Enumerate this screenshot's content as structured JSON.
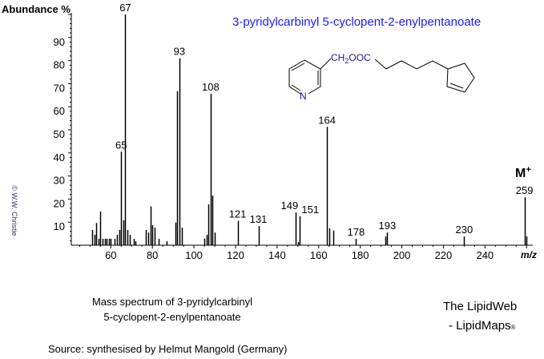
{
  "chart_data": {
    "type": "bar",
    "title": "3-pyridylcarbinyl 5-cyclopent-2-enylpentanoate",
    "xlabel": "m/z",
    "ylabel": "Abundance %",
    "xlim": [
      41,
      263
    ],
    "ylim": [
      0,
      100
    ],
    "xticks": [
      60,
      80,
      100,
      120,
      140,
      160,
      180,
      200,
      220,
      240
    ],
    "yticks": [
      10,
      20,
      30,
      40,
      50,
      60,
      70,
      80,
      90
    ],
    "grid": false,
    "bar_color": "#000000",
    "peaks": [
      {
        "mz": 51,
        "abundance": 6.6
      },
      {
        "mz": 52,
        "abundance": 4.5
      },
      {
        "mz": 53,
        "abundance": 9.6
      },
      {
        "mz": 54,
        "abundance": 2.8
      },
      {
        "mz": 55,
        "abundance": 14.6
      },
      {
        "mz": 56,
        "abundance": 2.8
      },
      {
        "mz": 57,
        "abundance": 2.8
      },
      {
        "mz": 58,
        "abundance": 2.8
      },
      {
        "mz": 59,
        "abundance": 2.8
      },
      {
        "mz": 60,
        "abundance": 2.8
      },
      {
        "mz": 62,
        "abundance": 2.8
      },
      {
        "mz": 63,
        "abundance": 4.5
      },
      {
        "mz": 64,
        "abundance": 6.6
      },
      {
        "mz": 65,
        "abundance": 40.5
      },
      {
        "mz": 66,
        "abundance": 10.8
      },
      {
        "mz": 67,
        "abundance": 100
      },
      {
        "mz": 68,
        "abundance": 6.6
      },
      {
        "mz": 69,
        "abundance": 4.5
      },
      {
        "mz": 71,
        "abundance": 2.8
      },
      {
        "mz": 72,
        "abundance": 1.7
      },
      {
        "mz": 77,
        "abundance": 6.6
      },
      {
        "mz": 78,
        "abundance": 5.5
      },
      {
        "mz": 79,
        "abundance": 16.8
      },
      {
        "mz": 80,
        "abundance": 8.7
      },
      {
        "mz": 81,
        "abundance": 7.6
      },
      {
        "mz": 83,
        "abundance": 2.8
      },
      {
        "mz": 87,
        "abundance": 1.7
      },
      {
        "mz": 91,
        "abundance": 9.8
      },
      {
        "mz": 92,
        "abundance": 66.7
      },
      {
        "mz": 93,
        "abundance": 81
      },
      {
        "mz": 94,
        "abundance": 7.6
      },
      {
        "mz": 105,
        "abundance": 2.9
      },
      {
        "mz": 106,
        "abundance": 4.5
      },
      {
        "mz": 107,
        "abundance": 17.7
      },
      {
        "mz": 108,
        "abundance": 65.6
      },
      {
        "mz": 109,
        "abundance": 21.5
      },
      {
        "mz": 110,
        "abundance": 5.5
      },
      {
        "mz": 121,
        "abundance": 10.6
      },
      {
        "mz": 131,
        "abundance": 8.3
      },
      {
        "mz": 149,
        "abundance": 14.2
      },
      {
        "mz": 150,
        "abundance": 1.4
      },
      {
        "mz": 151,
        "abundance": 12.5
      },
      {
        "mz": 164,
        "abundance": 51.3
      },
      {
        "mz": 165,
        "abundance": 7.3
      },
      {
        "mz": 167,
        "abundance": 6.4
      },
      {
        "mz": 178,
        "abundance": 2.8
      },
      {
        "mz": 192,
        "abundance": 3.8
      },
      {
        "mz": 193,
        "abundance": 5.5
      },
      {
        "mz": 230,
        "abundance": 3.8
      },
      {
        "mz": 259,
        "abundance": 20.8
      },
      {
        "mz": 260,
        "abundance": 3.8
      }
    ],
    "peak_labels": [
      "65",
      "67",
      "93",
      "108",
      "121",
      "131",
      "149",
      "151",
      "164",
      "178",
      "193",
      "230",
      "259"
    ],
    "molecular_ion_label": "M",
    "molecular_ion_sup": "+"
  },
  "structure": {
    "substituent": "CH",
    "sub2": "2",
    "ester": "OOC",
    "ring_atom": "N"
  },
  "caption": {
    "line1": "Mass spectrum of 3-pyridylcarbinyl",
    "line2": "5-cyclopent-2-enylpentanoate"
  },
  "branding": {
    "line1": "The LipidWeb",
    "line2": "- LipidMaps",
    "reg": "®"
  },
  "source": "Source: synthesised by Helmut Mangold (Germany)",
  "copyright": "© W.W. Christie"
}
